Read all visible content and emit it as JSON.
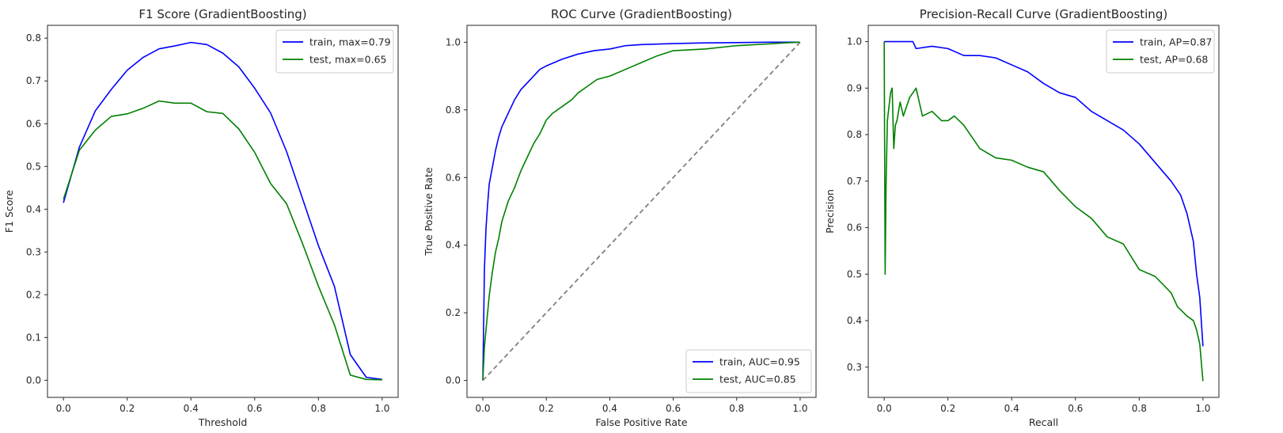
{
  "chart_data": [
    {
      "type": "line",
      "title": "F1 Score (GradientBoosting)",
      "xlabel": "Threshold",
      "ylabel": "F1 Score",
      "xlim": [
        -0.05,
        1.05
      ],
      "ylim": [
        -0.04,
        0.83
      ],
      "xticks": [
        0.0,
        0.2,
        0.4,
        0.6,
        0.8,
        1.0
      ],
      "xtick_labels": [
        "0.0",
        "0.2",
        "0.4",
        "0.6",
        "0.8",
        "1.0"
      ],
      "yticks": [
        0.0,
        0.1,
        0.2,
        0.3,
        0.4,
        0.5,
        0.6,
        0.7,
        0.8
      ],
      "ytick_labels": [
        "0.0",
        "0.1",
        "0.2",
        "0.3",
        "0.4",
        "0.5",
        "0.6",
        "0.7",
        "0.8"
      ],
      "grid": false,
      "legend_position": "top-right",
      "series": [
        {
          "name": "train, max=0.79",
          "color": "#0000ff",
          "x": [
            0.0,
            0.05,
            0.1,
            0.15,
            0.2,
            0.25,
            0.3,
            0.35,
            0.4,
            0.45,
            0.5,
            0.55,
            0.6,
            0.65,
            0.7,
            0.75,
            0.8,
            0.85,
            0.9,
            0.95,
            1.0
          ],
          "y": [
            0.415,
            0.545,
            0.63,
            0.68,
            0.725,
            0.755,
            0.775,
            0.782,
            0.79,
            0.785,
            0.765,
            0.733,
            0.683,
            0.625,
            0.535,
            0.425,
            0.315,
            0.22,
            0.06,
            0.007,
            0.002
          ]
        },
        {
          "name": "test, max=0.65",
          "color": "#008000",
          "x": [
            0.0,
            0.05,
            0.1,
            0.15,
            0.2,
            0.25,
            0.3,
            0.35,
            0.4,
            0.45,
            0.5,
            0.55,
            0.6,
            0.65,
            0.7,
            0.75,
            0.8,
            0.85,
            0.9,
            0.95,
            1.0
          ],
          "y": [
            0.423,
            0.538,
            0.585,
            0.617,
            0.623,
            0.636,
            0.653,
            0.648,
            0.648,
            0.628,
            0.624,
            0.588,
            0.533,
            0.46,
            0.413,
            0.32,
            0.22,
            0.13,
            0.012,
            0.002,
            0.001
          ]
        }
      ]
    },
    {
      "type": "line",
      "title": "ROC Curve (GradientBoosting)",
      "xlabel": "False Positive Rate",
      "ylabel": "True Positive Rate",
      "xlim": [
        -0.05,
        1.05
      ],
      "ylim": [
        -0.05,
        1.05
      ],
      "xticks": [
        0.0,
        0.2,
        0.4,
        0.6,
        0.8,
        1.0
      ],
      "xtick_labels": [
        "0.0",
        "0.2",
        "0.4",
        "0.6",
        "0.8",
        "1.0"
      ],
      "yticks": [
        0.0,
        0.2,
        0.4,
        0.6,
        0.8,
        1.0
      ],
      "ytick_labels": [
        "0.0",
        "0.2",
        "0.4",
        "0.6",
        "0.8",
        "1.0"
      ],
      "grid": false,
      "legend_position": "bottom-right",
      "series": [
        {
          "name": "train, AUC=0.95",
          "color": "#0000ff",
          "x": [
            0.0,
            0.003,
            0.005,
            0.01,
            0.015,
            0.02,
            0.03,
            0.04,
            0.05,
            0.06,
            0.07,
            0.08,
            0.1,
            0.12,
            0.14,
            0.16,
            0.18,
            0.2,
            0.25,
            0.3,
            0.35,
            0.4,
            0.45,
            0.5,
            0.6,
            0.7,
            0.8,
            0.9,
            1.0
          ],
          "y": [
            0.0,
            0.2,
            0.33,
            0.45,
            0.52,
            0.58,
            0.63,
            0.68,
            0.72,
            0.75,
            0.77,
            0.79,
            0.83,
            0.86,
            0.88,
            0.9,
            0.92,
            0.93,
            0.95,
            0.965,
            0.975,
            0.98,
            0.99,
            0.993,
            0.996,
            0.998,
            0.999,
            1.0,
            1.0
          ]
        },
        {
          "name": "test, AUC=0.85",
          "color": "#008000",
          "x": [
            0.0,
            0.005,
            0.01,
            0.02,
            0.03,
            0.04,
            0.05,
            0.06,
            0.08,
            0.1,
            0.12,
            0.14,
            0.16,
            0.18,
            0.2,
            0.22,
            0.25,
            0.28,
            0.3,
            0.33,
            0.36,
            0.4,
            0.45,
            0.5,
            0.55,
            0.6,
            0.7,
            0.8,
            0.9,
            0.95,
            1.0
          ],
          "y": [
            0.0,
            0.1,
            0.15,
            0.25,
            0.32,
            0.38,
            0.42,
            0.47,
            0.53,
            0.57,
            0.62,
            0.66,
            0.7,
            0.73,
            0.77,
            0.79,
            0.81,
            0.83,
            0.85,
            0.87,
            0.89,
            0.9,
            0.92,
            0.94,
            0.96,
            0.975,
            0.98,
            0.99,
            0.995,
            0.998,
            1.0
          ]
        },
        {
          "name": "",
          "color": "#808080",
          "dashed": true,
          "x": [
            0.0,
            1.0
          ],
          "y": [
            0.0,
            1.0
          ]
        }
      ]
    },
    {
      "type": "line",
      "title": "Precision-Recall Curve (GradientBoosting)",
      "xlabel": "Recall",
      "ylabel": "Precision",
      "xlim": [
        -0.05,
        1.05
      ],
      "ylim": [
        0.235,
        1.035
      ],
      "xticks": [
        0.0,
        0.2,
        0.4,
        0.6,
        0.8,
        1.0
      ],
      "xtick_labels": [
        "0.0",
        "0.2",
        "0.4",
        "0.6",
        "0.8",
        "1.0"
      ],
      "yticks": [
        0.3,
        0.4,
        0.5,
        0.6,
        0.7,
        0.8,
        0.9,
        1.0
      ],
      "ytick_labels": [
        "0.3",
        "0.4",
        "0.5",
        "0.6",
        "0.7",
        "0.8",
        "0.9",
        "1.0"
      ],
      "grid": false,
      "legend_position": "top-right",
      "series": [
        {
          "name": "train, AP=0.87",
          "color": "#0000ff",
          "x": [
            0.0,
            0.05,
            0.09,
            0.1,
            0.15,
            0.2,
            0.25,
            0.3,
            0.35,
            0.4,
            0.45,
            0.5,
            0.55,
            0.6,
            0.65,
            0.7,
            0.75,
            0.8,
            0.85,
            0.9,
            0.93,
            0.95,
            0.97,
            0.98,
            0.99,
            1.0
          ],
          "y": [
            1.0,
            1.0,
            1.0,
            0.985,
            0.99,
            0.985,
            0.97,
            0.97,
            0.965,
            0.95,
            0.935,
            0.91,
            0.89,
            0.88,
            0.85,
            0.83,
            0.81,
            0.78,
            0.74,
            0.7,
            0.67,
            0.63,
            0.57,
            0.5,
            0.45,
            0.345
          ]
        },
        {
          "name": "test, AP=0.68",
          "color": "#008000",
          "x": [
            0.0,
            0.003,
            0.006,
            0.01,
            0.015,
            0.02,
            0.025,
            0.03,
            0.035,
            0.04,
            0.05,
            0.06,
            0.08,
            0.1,
            0.12,
            0.15,
            0.18,
            0.2,
            0.22,
            0.25,
            0.28,
            0.3,
            0.35,
            0.4,
            0.45,
            0.5,
            0.55,
            0.6,
            0.65,
            0.7,
            0.75,
            0.8,
            0.85,
            0.9,
            0.92,
            0.95,
            0.97,
            0.98,
            0.99,
            1.0
          ],
          "y": [
            1.0,
            0.5,
            0.7,
            0.83,
            0.86,
            0.89,
            0.9,
            0.77,
            0.82,
            0.83,
            0.87,
            0.84,
            0.88,
            0.9,
            0.84,
            0.85,
            0.83,
            0.83,
            0.84,
            0.82,
            0.79,
            0.77,
            0.75,
            0.745,
            0.73,
            0.72,
            0.68,
            0.645,
            0.62,
            0.58,
            0.565,
            0.51,
            0.495,
            0.46,
            0.43,
            0.41,
            0.4,
            0.38,
            0.35,
            0.27
          ]
        }
      ]
    }
  ]
}
